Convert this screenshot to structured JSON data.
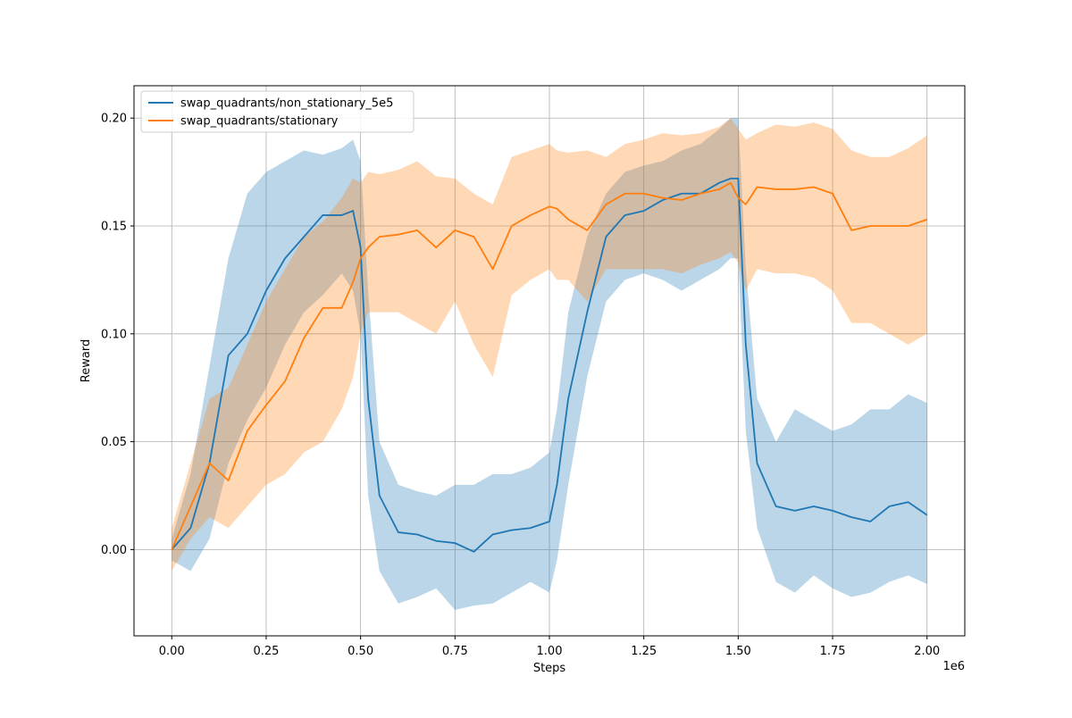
{
  "chart_data": {
    "type": "line",
    "xlabel": "Steps",
    "ylabel": "Reward",
    "x_offset_label": "1e6",
    "xlim": [
      -0.1,
      2.1
    ],
    "ylim": [
      -0.04,
      0.215
    ],
    "x_ticks": [
      "0.00",
      "0.25",
      "0.50",
      "0.75",
      "1.00",
      "1.25",
      "1.50",
      "1.75",
      "2.00"
    ],
    "y_ticks": [
      "0.00",
      "0.05",
      "0.10",
      "0.15",
      "0.20"
    ],
    "grid": true,
    "legend_position": "upper-left",
    "x": [
      0.0,
      0.05,
      0.1,
      0.15,
      0.2,
      0.25,
      0.3,
      0.35,
      0.4,
      0.45,
      0.48,
      0.5,
      0.52,
      0.55,
      0.6,
      0.65,
      0.7,
      0.75,
      0.8,
      0.85,
      0.9,
      0.95,
      1.0,
      1.02,
      1.05,
      1.1,
      1.15,
      1.2,
      1.25,
      1.3,
      1.35,
      1.4,
      1.45,
      1.48,
      1.5,
      1.52,
      1.55,
      1.6,
      1.65,
      1.7,
      1.75,
      1.8,
      1.85,
      1.9,
      1.95,
      2.0
    ],
    "series": [
      {
        "name": "swap_quadrants/non_stationary_5e5",
        "color": "#1f77b4",
        "values": [
          0.0,
          0.01,
          0.04,
          0.09,
          0.1,
          0.12,
          0.135,
          0.145,
          0.155,
          0.155,
          0.157,
          0.14,
          0.07,
          0.025,
          0.008,
          0.007,
          0.004,
          0.003,
          -0.001,
          0.007,
          0.009,
          0.01,
          0.013,
          0.03,
          0.07,
          0.11,
          0.145,
          0.155,
          0.157,
          0.162,
          0.165,
          0.165,
          0.17,
          0.172,
          0.172,
          0.095,
          0.04,
          0.02,
          0.018,
          0.02,
          0.018,
          0.015,
          0.013,
          0.02,
          0.022,
          0.016
        ],
        "upper": [
          0.005,
          0.035,
          0.085,
          0.135,
          0.165,
          0.175,
          0.18,
          0.185,
          0.183,
          0.186,
          0.19,
          0.18,
          0.12,
          0.05,
          0.03,
          0.027,
          0.025,
          0.03,
          0.03,
          0.035,
          0.035,
          0.038,
          0.045,
          0.065,
          0.11,
          0.145,
          0.165,
          0.175,
          0.178,
          0.18,
          0.185,
          0.188,
          0.195,
          0.2,
          0.2,
          0.13,
          0.07,
          0.05,
          0.065,
          0.06,
          0.055,
          0.058,
          0.065,
          0.065,
          0.072,
          0.068
        ],
        "lower": [
          -0.005,
          -0.01,
          0.005,
          0.04,
          0.06,
          0.075,
          0.095,
          0.11,
          0.118,
          0.128,
          0.12,
          0.1,
          0.025,
          -0.01,
          -0.025,
          -0.022,
          -0.018,
          -0.028,
          -0.026,
          -0.025,
          -0.02,
          -0.015,
          -0.02,
          -0.005,
          0.03,
          0.08,
          0.115,
          0.125,
          0.128,
          0.125,
          0.12,
          0.125,
          0.13,
          0.135,
          0.135,
          0.055,
          0.01,
          -0.015,
          -0.02,
          -0.012,
          -0.018,
          -0.022,
          -0.02,
          -0.015,
          -0.012,
          -0.016
        ]
      },
      {
        "name": "swap_quadrants/stationary",
        "color": "#ff7f0e",
        "values": [
          0.0,
          0.02,
          0.04,
          0.032,
          0.055,
          0.067,
          0.078,
          0.098,
          0.112,
          0.112,
          0.124,
          0.135,
          0.14,
          0.145,
          0.146,
          0.148,
          0.14,
          0.148,
          0.145,
          0.13,
          0.15,
          0.155,
          0.159,
          0.158,
          0.153,
          0.148,
          0.16,
          0.165,
          0.165,
          0.163,
          0.162,
          0.165,
          0.167,
          0.17,
          0.163,
          0.16,
          0.168,
          0.167,
          0.167,
          0.168,
          0.165,
          0.148,
          0.15,
          0.15,
          0.15,
          0.153
        ],
        "upper": [
          0.01,
          0.04,
          0.07,
          0.075,
          0.095,
          0.115,
          0.13,
          0.145,
          0.152,
          0.163,
          0.172,
          0.17,
          0.175,
          0.174,
          0.176,
          0.18,
          0.173,
          0.172,
          0.165,
          0.16,
          0.182,
          0.185,
          0.188,
          0.185,
          0.184,
          0.185,
          0.182,
          0.188,
          0.19,
          0.193,
          0.192,
          0.193,
          0.196,
          0.2,
          0.195,
          0.19,
          0.193,
          0.197,
          0.196,
          0.198,
          0.195,
          0.185,
          0.182,
          0.182,
          0.186,
          0.192
        ],
        "lower": [
          -0.01,
          0.005,
          0.015,
          0.01,
          0.02,
          0.03,
          0.035,
          0.045,
          0.05,
          0.065,
          0.08,
          0.1,
          0.11,
          0.11,
          0.11,
          0.105,
          0.1,
          0.115,
          0.095,
          0.08,
          0.118,
          0.125,
          0.13,
          0.125,
          0.125,
          0.115,
          0.13,
          0.13,
          0.13,
          0.13,
          0.128,
          0.132,
          0.135,
          0.138,
          0.133,
          0.12,
          0.13,
          0.128,
          0.128,
          0.126,
          0.12,
          0.105,
          0.105,
          0.1,
          0.095,
          0.1
        ]
      }
    ]
  }
}
